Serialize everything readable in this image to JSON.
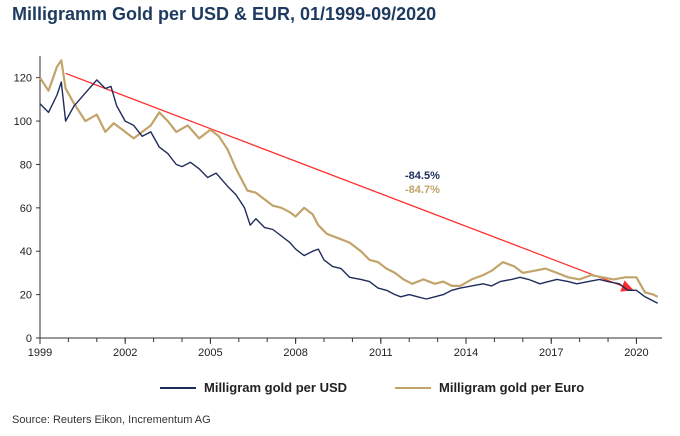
{
  "title": "Milligramm Gold per USD & EUR, 01/1999-09/2020",
  "source": "Source: Reuters Eikon, Incrementum AG",
  "colors": {
    "usd": "#1f2d5c",
    "eur": "#c2a46a",
    "trend": "#ff2a2a",
    "axis": "#333333"
  },
  "chart_data": {
    "type": "line",
    "title": "Milligramm Gold per USD & EUR, 01/1999-09/2020",
    "xlabel": "",
    "ylabel": "",
    "xlim": [
      1999,
      2020.9
    ],
    "ylim": [
      0,
      130
    ],
    "yticks": [
      0,
      20,
      40,
      60,
      80,
      100,
      120
    ],
    "xticks": [
      "1999",
      "2002",
      "2005",
      "2008",
      "2011",
      "2014",
      "2017",
      "2020"
    ],
    "grid": false,
    "legend_position": "bottom",
    "annotations": [
      {
        "text": "-84.5%",
        "series": "Milligram gold per USD"
      },
      {
        "text": "-84.7%",
        "series": "Milligram gold per Euro"
      }
    ],
    "trendline": {
      "x": [
        1999.9,
        2019.9
      ],
      "y": [
        122,
        22
      ]
    },
    "series": [
      {
        "name": "Milligram gold per USD",
        "color": "#1f2d5c",
        "x": [
          1999.0,
          1999.3,
          1999.6,
          1999.75,
          1999.9,
          2000.2,
          2000.6,
          2001.0,
          2001.3,
          2001.5,
          2001.7,
          2002.0,
          2002.3,
          2002.6,
          2002.9,
          2003.2,
          2003.5,
          2003.8,
          2004.0,
          2004.3,
          2004.6,
          2004.9,
          2005.2,
          2005.6,
          2005.9,
          2006.2,
          2006.4,
          2006.6,
          2006.9,
          2007.2,
          2007.5,
          2007.8,
          2008.0,
          2008.3,
          2008.6,
          2008.8,
          2009.0,
          2009.3,
          2009.6,
          2009.9,
          2010.3,
          2010.6,
          2010.9,
          2011.2,
          2011.5,
          2011.7,
          2012.0,
          2012.3,
          2012.6,
          2012.9,
          2013.2,
          2013.5,
          2013.8,
          2014.2,
          2014.6,
          2014.9,
          2015.2,
          2015.6,
          2015.9,
          2016.2,
          2016.6,
          2016.9,
          2017.2,
          2017.6,
          2017.9,
          2018.3,
          2018.7,
          2019.0,
          2019.4,
          2019.7,
          2020.0,
          2020.3,
          2020.6,
          2020.75
        ],
        "y": [
          108,
          104,
          112,
          118,
          100,
          107,
          113,
          119,
          115,
          116,
          107,
          100,
          98,
          93,
          95,
          88,
          85,
          80,
          79,
          81,
          78,
          74,
          76,
          70,
          66,
          60,
          52,
          55,
          51,
          50,
          47,
          44,
          41,
          38,
          40,
          41,
          36,
          33,
          32,
          28,
          27,
          26,
          23,
          22,
          20,
          19,
          20,
          19,
          18,
          19,
          20,
          22,
          23,
          24,
          25,
          24,
          26,
          27,
          28,
          27,
          25,
          26,
          27,
          26,
          25,
          26,
          27,
          26,
          25,
          22,
          22,
          19,
          17,
          16
        ]
      },
      {
        "name": "Milligram gold per Euro",
        "color": "#c2a46a",
        "x": [
          1999.0,
          1999.3,
          1999.6,
          1999.75,
          1999.9,
          2000.2,
          2000.6,
          2001.0,
          2001.3,
          2001.6,
          2002.0,
          2002.3,
          2002.6,
          2002.9,
          2003.2,
          2003.5,
          2003.8,
          2004.2,
          2004.6,
          2005.0,
          2005.3,
          2005.6,
          2005.9,
          2006.3,
          2006.6,
          2006.9,
          2007.2,
          2007.5,
          2007.8,
          2008.0,
          2008.3,
          2008.6,
          2008.8,
          2009.1,
          2009.5,
          2009.9,
          2010.3,
          2010.6,
          2010.9,
          2011.2,
          2011.5,
          2011.8,
          2012.1,
          2012.5,
          2012.9,
          2013.2,
          2013.5,
          2013.8,
          2014.2,
          2014.6,
          2014.9,
          2015.3,
          2015.7,
          2016.0,
          2016.4,
          2016.8,
          2017.2,
          2017.6,
          2018.0,
          2018.4,
          2018.8,
          2019.2,
          2019.6,
          2020.0,
          2020.3,
          2020.6,
          2020.75
        ],
        "y": [
          120,
          114,
          125,
          128,
          115,
          108,
          100,
          103,
          95,
          99,
          95,
          92,
          95,
          98,
          104,
          100,
          95,
          98,
          92,
          96,
          93,
          87,
          78,
          68,
          67,
          64,
          61,
          60,
          58,
          56,
          60,
          57,
          52,
          48,
          46,
          44,
          40,
          36,
          35,
          32,
          30,
          27,
          25,
          27,
          25,
          26,
          24,
          24,
          27,
          29,
          31,
          35,
          33,
          30,
          31,
          32,
          30,
          28,
          27,
          29,
          28,
          27,
          28,
          28,
          21,
          20,
          19
        ]
      }
    ]
  },
  "legend": [
    {
      "label": "Milligram gold per USD",
      "color": "#1f2d5c"
    },
    {
      "label": "Milligram gold per Euro",
      "color": "#c2a46a"
    }
  ]
}
